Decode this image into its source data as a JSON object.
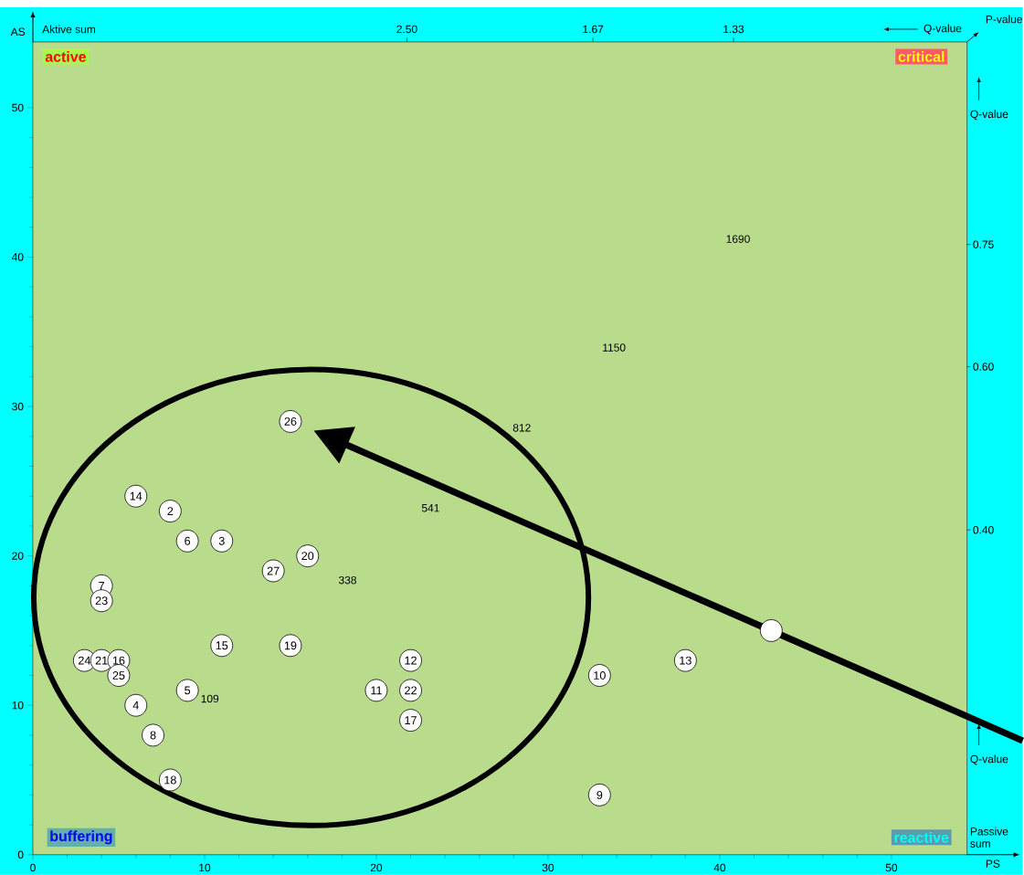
{
  "chart_data": {
    "type": "scatter",
    "xlabel": "PS",
    "ylabel": "AS",
    "x": [
      15,
      6,
      8,
      9,
      11,
      16,
      14,
      4,
      4,
      11,
      15,
      3,
      4,
      5,
      5,
      22,
      9,
      20,
      22,
      6,
      22,
      7,
      8,
      33,
      33,
      38,
      43
    ],
    "values": [
      29,
      24,
      23,
      21,
      21,
      20,
      19,
      18,
      17,
      14,
      14,
      13,
      13,
      13,
      12,
      13,
      11,
      11,
      11,
      10,
      9,
      8,
      5,
      4,
      12,
      13,
      15
    ],
    "color": "#ffffff",
    "marker": "circle",
    "xlim": [
      0,
      54.4
    ],
    "ylim": [
      0,
      54.4
    ],
    "xticks": [
      0,
      10,
      20,
      30,
      40,
      50
    ],
    "yticks": [
      0,
      10,
      20,
      30,
      40,
      50
    ],
    "annotations": [
      "Aktive sum",
      "P-value",
      "Q-value",
      "Passive sum",
      "active",
      "critical",
      "buffering",
      "reactive",
      "109",
      "338",
      "541",
      "812",
      "1150",
      "1690",
      "2.50",
      "1.67",
      "1.33",
      "0.75",
      "0.60",
      "0.40",
      "Q-value",
      "Q-value",
      {
        "text": "26",
        "x": 15,
        "y": 29
      },
      {
        "text": "14",
        "x": 6,
        "y": 24
      },
      {
        "text": "2",
        "x": 8,
        "y": 23
      },
      {
        "text": "6",
        "x": 9,
        "y": 21
      },
      {
        "text": "3",
        "x": 11,
        "y": 21
      },
      {
        "text": "20",
        "x": 16,
        "y": 20
      },
      {
        "text": "27",
        "x": 14,
        "y": 19
      },
      {
        "text": "7",
        "x": 4,
        "y": 18
      },
      {
        "text": "23",
        "x": 4,
        "y": 17
      },
      {
        "text": "15",
        "x": 11,
        "y": 14
      },
      {
        "text": "19",
        "x": 15,
        "y": 14
      },
      {
        "text": "24",
        "x": 3,
        "y": 13
      },
      {
        "text": "21",
        "x": 4,
        "y": 13
      },
      {
        "text": "16",
        "x": 5,
        "y": 13
      },
      {
        "text": "25",
        "x": 5,
        "y": 12
      },
      {
        "text": "12",
        "x": 22,
        "y": 13
      },
      {
        "text": "5",
        "x": 9,
        "y": 11
      },
      {
        "text": "11",
        "x": 20,
        "y": 11
      },
      {
        "text": "22",
        "x": 22,
        "y": 11
      },
      {
        "text": "4",
        "x": 6,
        "y": 10
      },
      {
        "text": "17",
        "x": 22,
        "y": 9
      },
      {
        "text": "8",
        "x": 7,
        "y": 8
      },
      {
        "text": "18",
        "x": 8,
        "y": 5
      },
      {
        "text": "9",
        "x": 33,
        "y": 4
      },
      {
        "text": "10",
        "x": 33,
        "y": 12
      },
      {
        "text": "13",
        "x": 38,
        "y": 13
      }
    ]
  }
}
